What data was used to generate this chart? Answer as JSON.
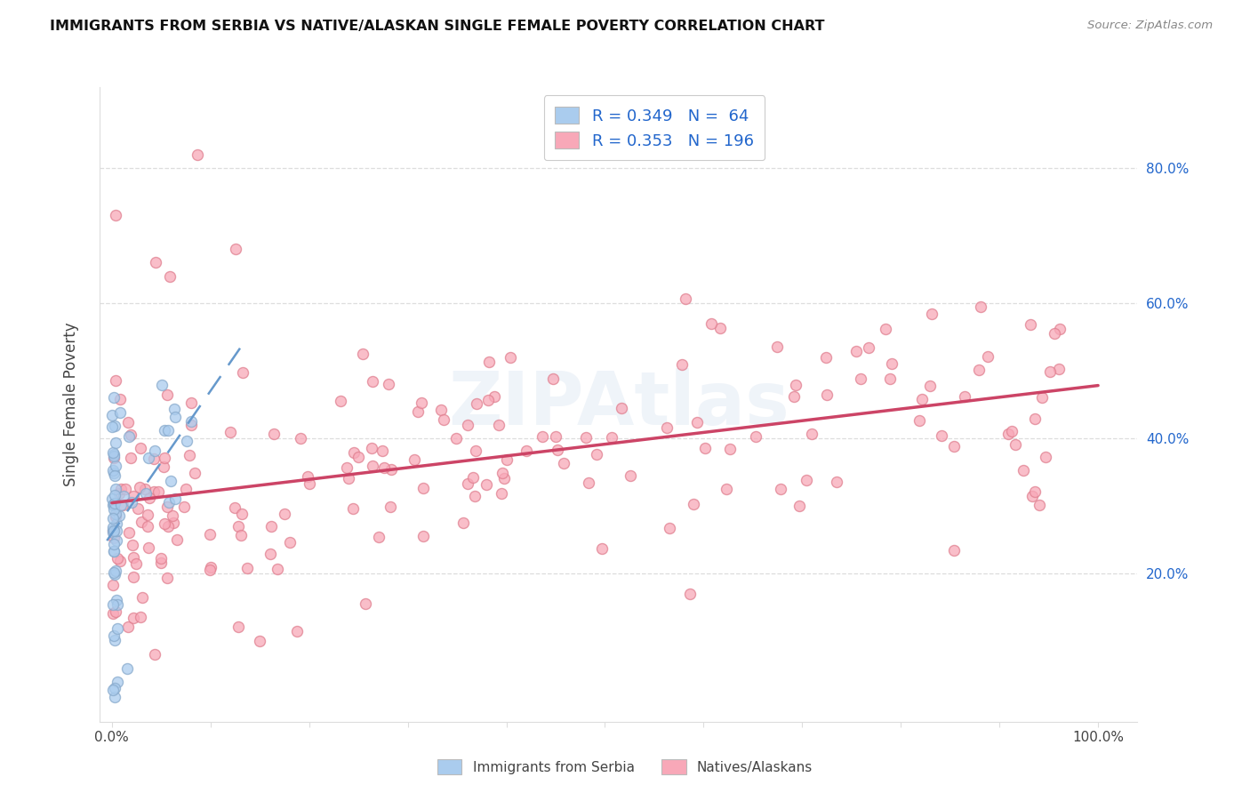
{
  "title": "IMMIGRANTS FROM SERBIA VS NATIVE/ALASKAN SINGLE FEMALE POVERTY CORRELATION CHART",
  "source": "Source: ZipAtlas.com",
  "ylabel": "Single Female Poverty",
  "ytick_labels": [
    "80.0%",
    "60.0%",
    "40.0%",
    "20.0%"
  ],
  "ytick_positions": [
    0.8,
    0.6,
    0.4,
    0.2
  ],
  "serbia_color_face": "#aaccee",
  "serbia_color_edge": "#88aacc",
  "native_color_face": "#f8a8b8",
  "native_color_edge": "#e08090",
  "serbia_line_color": "#6699cc",
  "native_line_color": "#cc4466",
  "legend_entries": [
    {
      "r": "0.349",
      "n": "64"
    },
    {
      "r": "0.353",
      "n": "196"
    }
  ],
  "legend_r_color": "#2255dd",
  "legend_n_color": "#2255dd",
  "bottom_legend": [
    "Immigrants from Serbia",
    "Natives/Alaskans"
  ],
  "watermark": "ZIPAtlas",
  "grid_color": "#dddddd",
  "title_fontsize": 11.5,
  "source_fontsize": 9.5,
  "marker_size": 75
}
